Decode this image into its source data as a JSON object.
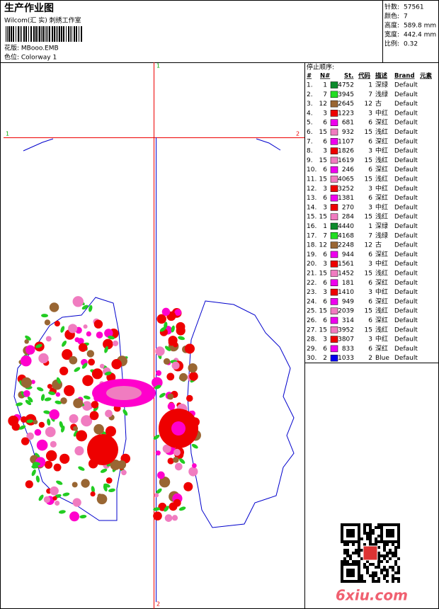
{
  "header": {
    "title": "生产作业图",
    "studio": "Wilcom(汇 实) 刺绣工作室",
    "design": "花版: MBooo.EMB",
    "colorway": "色位: Colorway 1"
  },
  "stats": [
    {
      "label": "针数:",
      "value": "57561"
    },
    {
      "label": "颜色:",
      "value": "7"
    },
    {
      "label": "高度:",
      "value": "589.8 mm"
    },
    {
      "label": "宽度:",
      "value": "442.4 mm"
    },
    {
      "label": "比例:",
      "value": "0.32"
    }
  ],
  "guides": {
    "top": "1",
    "bottom": "2",
    "left": "1",
    "right": "2"
  },
  "table": {
    "title": "停止顺序:",
    "columns": [
      "#",
      "N#",
      "St.",
      "代码",
      "描述",
      "Brand",
      "元素"
    ],
    "colors": {
      "1": "#0b8a2b",
      "2": "#0000ee",
      "3": "#ee0000",
      "6": "#ee00ee",
      "7": "#22dd22",
      "12": "#996633",
      "15": "#f07cc0"
    },
    "rows": [
      {
        "index": "1.",
        "n": 1,
        "st": 4752,
        "code": 1,
        "desc": "深绿",
        "brand": "Default"
      },
      {
        "index": "2.",
        "n": 7,
        "st": 3945,
        "code": 7,
        "desc": "浅绿",
        "brand": "Default"
      },
      {
        "index": "3.",
        "n": 12,
        "st": 2645,
        "code": 12,
        "desc": "古",
        "brand": "Default"
      },
      {
        "index": "4.",
        "n": 3,
        "st": 1223,
        "code": 3,
        "desc": "中红",
        "brand": "Default"
      },
      {
        "index": "5.",
        "n": 6,
        "st": 681,
        "code": 6,
        "desc": "深红",
        "brand": "Default"
      },
      {
        "index": "6.",
        "n": 15,
        "st": 932,
        "code": 15,
        "desc": "浅红",
        "brand": "Default"
      },
      {
        "index": "7.",
        "n": 6,
        "st": 1107,
        "code": 6,
        "desc": "深红",
        "brand": "Default"
      },
      {
        "index": "8.",
        "n": 3,
        "st": 1826,
        "code": 3,
        "desc": "中红",
        "brand": "Default"
      },
      {
        "index": "9.",
        "n": 15,
        "st": 1619,
        "code": 15,
        "desc": "浅红",
        "brand": "Default"
      },
      {
        "index": "10.",
        "n": 6,
        "st": 246,
        "code": 6,
        "desc": "深红",
        "brand": "Default"
      },
      {
        "index": "11.",
        "n": 15,
        "st": 4065,
        "code": 15,
        "desc": "浅红",
        "brand": "Default"
      },
      {
        "index": "12.",
        "n": 3,
        "st": 3252,
        "code": 3,
        "desc": "中红",
        "brand": "Default"
      },
      {
        "index": "13.",
        "n": 6,
        "st": 1381,
        "code": 6,
        "desc": "深红",
        "brand": "Default"
      },
      {
        "index": "14.",
        "n": 3,
        "st": 270,
        "code": 3,
        "desc": "中红",
        "brand": "Default"
      },
      {
        "index": "15.",
        "n": 15,
        "st": 284,
        "code": 15,
        "desc": "浅红",
        "brand": "Default"
      },
      {
        "index": "16.",
        "n": 1,
        "st": 4440,
        "code": 1,
        "desc": "深绿",
        "brand": "Default"
      },
      {
        "index": "17.",
        "n": 7,
        "st": 4168,
        "code": 7,
        "desc": "浅绿",
        "brand": "Default"
      },
      {
        "index": "18.",
        "n": 12,
        "st": 2248,
        "code": 12,
        "desc": "古",
        "brand": "Default"
      },
      {
        "index": "19.",
        "n": 6,
        "st": 944,
        "code": 6,
        "desc": "深红",
        "brand": "Default"
      },
      {
        "index": "20.",
        "n": 3,
        "st": 1561,
        "code": 3,
        "desc": "中红",
        "brand": "Default"
      },
      {
        "index": "21.",
        "n": 15,
        "st": 1452,
        "code": 15,
        "desc": "浅红",
        "brand": "Default"
      },
      {
        "index": "22.",
        "n": 6,
        "st": 181,
        "code": 6,
        "desc": "深红",
        "brand": "Default"
      },
      {
        "index": "23.",
        "n": 3,
        "st": 1410,
        "code": 3,
        "desc": "中红",
        "brand": "Default"
      },
      {
        "index": "24.",
        "n": 6,
        "st": 949,
        "code": 6,
        "desc": "深红",
        "brand": "Default"
      },
      {
        "index": "25.",
        "n": 15,
        "st": 2039,
        "code": 15,
        "desc": "浅红",
        "brand": "Default"
      },
      {
        "index": "26.",
        "n": 6,
        "st": 314,
        "code": 6,
        "desc": "深红",
        "brand": "Default"
      },
      {
        "index": "27.",
        "n": 15,
        "st": 3952,
        "code": 15,
        "desc": "浅红",
        "brand": "Default"
      },
      {
        "index": "28.",
        "n": 3,
        "st": 3807,
        "code": 3,
        "desc": "中红",
        "brand": "Default"
      },
      {
        "index": "29.",
        "n": 6,
        "st": 833,
        "code": 6,
        "desc": "深红",
        "brand": "Default"
      },
      {
        "index": "30.",
        "n": 2,
        "st": 1033,
        "code": 2,
        "desc": "Blue",
        "brand": "Default"
      }
    ]
  },
  "watermark": "6xiu.com"
}
